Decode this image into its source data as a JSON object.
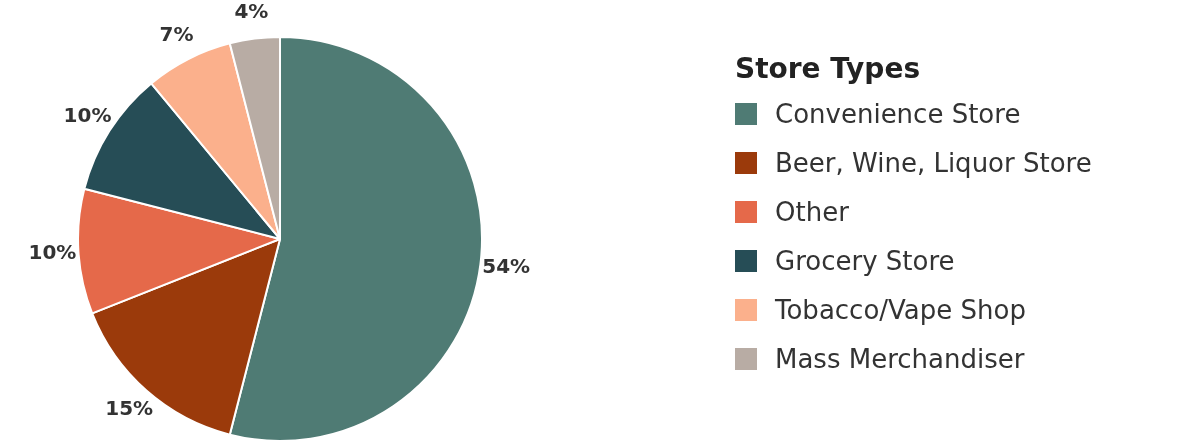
{
  "chart_data": {
    "type": "pie",
    "legend_title": "Store Types",
    "categories": [
      "Convenience Store",
      "Beer, Wine, Liquor Store",
      "Other",
      "Grocery Store",
      "Tobacco/Vape Shop",
      "Mass Merchandiser"
    ],
    "values": [
      54,
      15,
      10,
      10,
      7,
      4
    ],
    "value_labels": [
      "54%",
      "15%",
      "10%",
      "10%",
      "7%",
      "4%"
    ],
    "colors": [
      "#4f7b74",
      "#9b3a0b",
      "#e5694a",
      "#264d56",
      "#fbb08c",
      "#b8aca4"
    ],
    "legend": "right"
  }
}
